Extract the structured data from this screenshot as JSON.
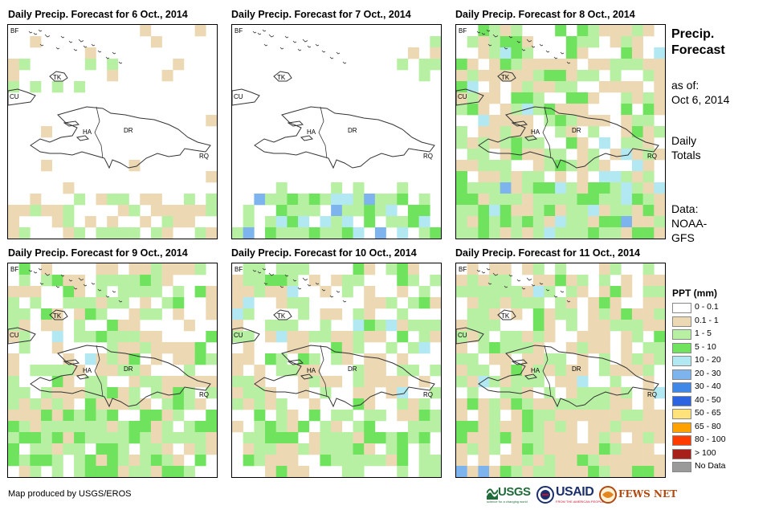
{
  "panels": [
    {
      "title": "Daily Precip. Forecast for 6 Oct., 2014"
    },
    {
      "title": "Daily Precip. Forecast for 7 Oct., 2014"
    },
    {
      "title": "Daily Precip. Forecast for 8 Oct., 2014"
    },
    {
      "title": "Daily Precip. Forecast for 9 Oct., 2014"
    },
    {
      "title": "Daily Precip. Forecast for 10 Oct., 2014"
    },
    {
      "title": "Daily Precip. Forecast for 11 Oct., 2014"
    }
  ],
  "map_labels": {
    "bf": "BF",
    "tk": "TK",
    "cu": "CU",
    "ha": "HA",
    "dr": "DR",
    "rq": "RQ"
  },
  "sidebar": {
    "title_line1": "Precip.",
    "title_line2": "Forecast",
    "asof_line1": "as of:",
    "asof_line2": "Oct 6, 2014",
    "totals_line1": "Daily",
    "totals_line2": "Totals",
    "data_line1": "Data:",
    "data_line2": "NOAA-",
    "data_line3": "GFS"
  },
  "legend": {
    "title": "PPT (mm)",
    "items": [
      {
        "label": "0 - 0.1",
        "color": "#ffffff"
      },
      {
        "label": "0.1 - 1",
        "color": "#ecd9b4"
      },
      {
        "label": "1 - 5",
        "color": "#b7f0a3"
      },
      {
        "label": "5 - 10",
        "color": "#6fe25e"
      },
      {
        "label": "10 - 20",
        "color": "#b2e8f2"
      },
      {
        "label": "20 - 30",
        "color": "#7db4ee"
      },
      {
        "label": "30 - 40",
        "color": "#3f88e8"
      },
      {
        "label": "40 - 50",
        "color": "#2c63e0"
      },
      {
        "label": "50 - 65",
        "color": "#ffe27a"
      },
      {
        "label": "65 - 80",
        "color": "#ffa200"
      },
      {
        "label": "80 - 100",
        "color": "#ff3c00"
      },
      {
        "label": "> 100",
        "color": "#a8201a"
      },
      {
        "label": "No Data",
        "color": "#9a9a9a"
      }
    ]
  },
  "credit": "Map produced by USGS/EROS",
  "logos": {
    "usgs": "USGS",
    "usgs_tag": "science for a changing world",
    "usaid": "USAID",
    "usaid_tag": "FROM THE AMERICAN PEOPLE",
    "fewsnet": "FEWS NET"
  },
  "colors": {
    "w": "#ffffff",
    "t": "#ecd9b4",
    "g": "#b7f0a3",
    "G": "#6fe25e",
    "c": "#b2e8f2",
    "b": "#7db4ee",
    "B": "#3f88e8"
  }
}
